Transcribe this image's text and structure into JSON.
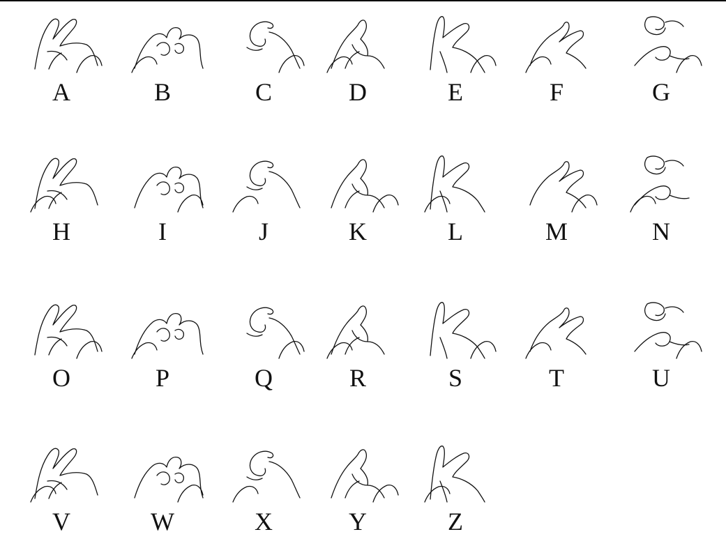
{
  "letters": [
    {
      "letter": "A",
      "sign_icon": "hand-sign-a-icon"
    },
    {
      "letter": "B",
      "sign_icon": "hand-sign-b-icon"
    },
    {
      "letter": "C",
      "sign_icon": "hand-sign-c-icon"
    },
    {
      "letter": "D",
      "sign_icon": "hand-sign-d-icon"
    },
    {
      "letter": "E",
      "sign_icon": "hand-sign-e-icon"
    },
    {
      "letter": "F",
      "sign_icon": "hand-sign-f-icon"
    },
    {
      "letter": "G",
      "sign_icon": "hand-sign-g-icon"
    },
    {
      "letter": "H",
      "sign_icon": "hand-sign-h-icon"
    },
    {
      "letter": "I",
      "sign_icon": "hand-sign-i-icon"
    },
    {
      "letter": "J",
      "sign_icon": "hand-sign-j-icon"
    },
    {
      "letter": "K",
      "sign_icon": "hand-sign-k-icon"
    },
    {
      "letter": "L",
      "sign_icon": "hand-sign-l-icon"
    },
    {
      "letter": "M",
      "sign_icon": "hand-sign-m-icon"
    },
    {
      "letter": "N",
      "sign_icon": "hand-sign-n-icon"
    },
    {
      "letter": "O",
      "sign_icon": "hand-sign-o-icon"
    },
    {
      "letter": "P",
      "sign_icon": "hand-sign-p-icon"
    },
    {
      "letter": "Q",
      "sign_icon": "hand-sign-q-icon"
    },
    {
      "letter": "R",
      "sign_icon": "hand-sign-r-icon"
    },
    {
      "letter": "S",
      "sign_icon": "hand-sign-s-icon"
    },
    {
      "letter": "T",
      "sign_icon": "hand-sign-t-icon"
    },
    {
      "letter": "U",
      "sign_icon": "hand-sign-u-icon"
    },
    {
      "letter": "V",
      "sign_icon": "hand-sign-v-icon"
    },
    {
      "letter": "W",
      "sign_icon": "hand-sign-w-icon"
    },
    {
      "letter": "X",
      "sign_icon": "hand-sign-x-icon"
    },
    {
      "letter": "Y",
      "sign_icon": "hand-sign-y-icon"
    },
    {
      "letter": "Z",
      "sign_icon": "hand-sign-z-icon"
    }
  ]
}
